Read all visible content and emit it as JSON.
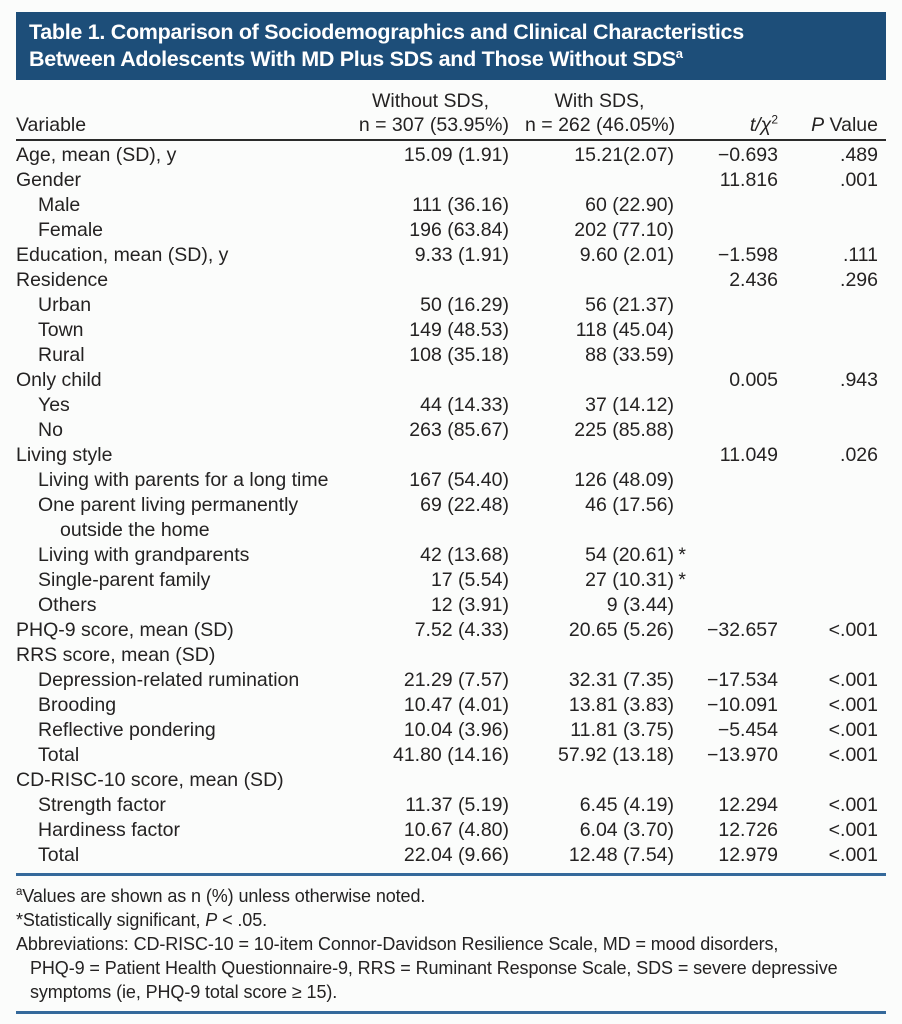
{
  "colors": {
    "header_bg": "#1d4e79",
    "rule_blue": "#35699b",
    "rule_dark": "#2b2b2b"
  },
  "title": {
    "line1": "Table 1. Comparison of Sociodemographics and Clinical Characteristics",
    "line2": "Between Adolescents With MD Plus SDS and Those Without SDS",
    "superscript": "a"
  },
  "columns": {
    "variable": "Variable",
    "without_line1": "Without SDS,",
    "without_line2": "n = 307 (53.95%)",
    "with_line1": "With SDS,",
    "with_line2": "n = 262 (46.05%)",
    "stat_italic": "t/χ",
    "stat_sup": "2",
    "p_italic": "P",
    "p_rest": " Value"
  },
  "table": {
    "rows": [
      {
        "label": "Age, mean (SD), y",
        "indent": 0,
        "without": "15.09 (1.91)",
        "with": "15.21(2.07)",
        "stat": "−0.693",
        "p": ".489"
      },
      {
        "label": "Gender",
        "indent": 0,
        "without": "",
        "with": "",
        "stat": "11.816",
        "p": ".001"
      },
      {
        "label": "Male",
        "indent": 1,
        "without": "111 (36.16)",
        "with": "60 (22.90)",
        "stat": "",
        "p": ""
      },
      {
        "label": "Female",
        "indent": 1,
        "without": "196 (63.84)",
        "with": "202 (77.10)",
        "stat": "",
        "p": ""
      },
      {
        "label": "Education, mean (SD), y",
        "indent": 0,
        "without": "9.33 (1.91)",
        "with": "9.60 (2.01)",
        "stat": "−1.598",
        "p": ".111"
      },
      {
        "label": "Residence",
        "indent": 0,
        "without": "",
        "with": "",
        "stat": "2.436",
        "p": ".296"
      },
      {
        "label": "Urban",
        "indent": 1,
        "without": "50 (16.29)",
        "with": "56 (21.37)",
        "stat": "",
        "p": ""
      },
      {
        "label": "Town",
        "indent": 1,
        "without": "149 (48.53)",
        "with": "118 (45.04)",
        "stat": "",
        "p": ""
      },
      {
        "label": "Rural",
        "indent": 1,
        "without": "108 (35.18)",
        "with": "88 (33.59)",
        "stat": "",
        "p": ""
      },
      {
        "label": "Only child",
        "indent": 0,
        "without": "",
        "with": "",
        "stat": "0.005",
        "p": ".943"
      },
      {
        "label": "Yes",
        "indent": 1,
        "without": "44 (14.33)",
        "with": "37 (14.12)",
        "stat": "",
        "p": ""
      },
      {
        "label": "No",
        "indent": 1,
        "without": "263 (85.67)",
        "with": "225 (85.88)",
        "stat": "",
        "p": ""
      },
      {
        "label": "Living style",
        "indent": 0,
        "without": "",
        "with": "",
        "stat": "11.049",
        "p": ".026"
      },
      {
        "label": "Living with parents for a long time",
        "indent": 1,
        "without": "167 (54.40)",
        "with": "126 (48.09)",
        "stat": "",
        "p": ""
      },
      {
        "label": "One parent living permanently",
        "indent": 1,
        "without": "69 (22.48)",
        "with": "46 (17.56)",
        "stat": "",
        "p": ""
      },
      {
        "label": "outside the home",
        "indent": 2,
        "without": "",
        "with": "",
        "stat": "",
        "p": ""
      },
      {
        "label": "Living with grandparents",
        "indent": 1,
        "without": "42 (13.68)",
        "with": "54 (20.61)*",
        "stat": "",
        "p": ""
      },
      {
        "label": "Single-parent family",
        "indent": 1,
        "without": "17 (5.54)",
        "with": "27 (10.31)*",
        "stat": "",
        "p": ""
      },
      {
        "label": "Others",
        "indent": 1,
        "without": "12 (3.91)",
        "with": "9 (3.44)",
        "stat": "",
        "p": ""
      },
      {
        "label": "PHQ-9 score, mean (SD)",
        "indent": 0,
        "without": "7.52 (4.33)",
        "with": "20.65 (5.26)",
        "stat": "−32.657",
        "p": "<.001"
      },
      {
        "label": "RRS score, mean (SD)",
        "indent": 0,
        "without": "",
        "with": "",
        "stat": "",
        "p": ""
      },
      {
        "label": "Depression-related rumination",
        "indent": 1,
        "without": "21.29 (7.57)",
        "with": "32.31 (7.35)",
        "stat": "−17.534",
        "p": "<.001"
      },
      {
        "label": "Brooding",
        "indent": 1,
        "without": "10.47 (4.01)",
        "with": "13.81 (3.83)",
        "stat": "−10.091",
        "p": "<.001"
      },
      {
        "label": "Reflective pondering",
        "indent": 1,
        "without": "10.04 (3.96)",
        "with": "11.81 (3.75)",
        "stat": "−5.454",
        "p": "<.001"
      },
      {
        "label": "Total",
        "indent": 1,
        "without": "41.80 (14.16)",
        "with": "57.92 (13.18)",
        "stat": "−13.970",
        "p": "<.001"
      },
      {
        "label": "CD-RISC-10 score, mean (SD)",
        "indent": 0,
        "without": "",
        "with": "",
        "stat": "",
        "p": ""
      },
      {
        "label": "Strength factor",
        "indent": 1,
        "without": "11.37 (5.19)",
        "with": "6.45 (4.19)",
        "stat": "12.294",
        "p": "<.001"
      },
      {
        "label": "Hardiness factor",
        "indent": 1,
        "without": "10.67 (4.80)",
        "with": "6.04 (3.70)",
        "stat": "12.726",
        "p": "<.001"
      },
      {
        "label": "Total",
        "indent": 1,
        "without": "22.04 (9.66)",
        "with": "12.48 (7.54)",
        "stat": "12.979",
        "p": "<.001"
      }
    ]
  },
  "footnotes": {
    "fn1_sup": "a",
    "fn1_text": "Values are shown as n (%) unless otherwise noted.",
    "fn2_pre": "*Statistically significant, ",
    "fn2_italic": "P",
    "fn2_post": " < .05.",
    "abbr_line1": "Abbreviations: CD-RISC-10 = 10-item Connor-Davidson Resilience Scale, MD = mood disorders,",
    "abbr_line2": "PHQ-9 = Patient Health Questionnaire-9, RRS = Ruminant Response Scale, SDS = severe depressive",
    "abbr_line3": "symptoms (ie, PHQ-9 total score ≥ 15)."
  }
}
